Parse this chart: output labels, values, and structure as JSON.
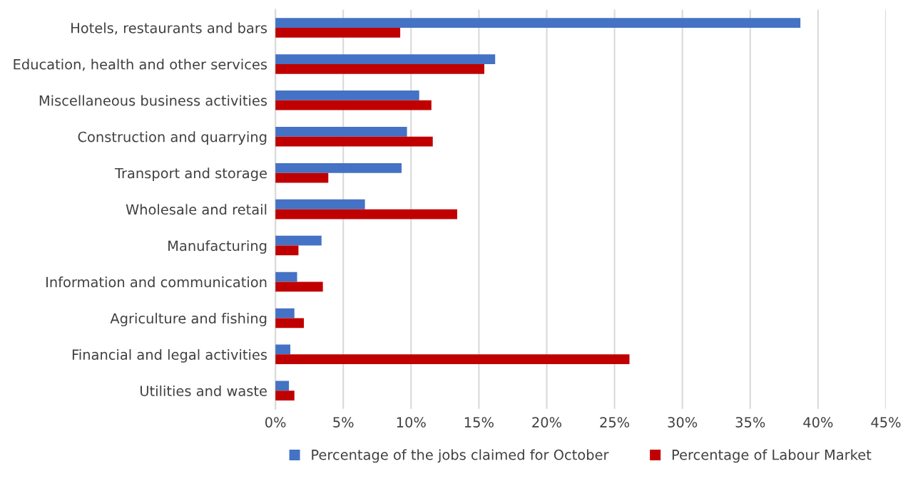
{
  "chart_data": {
    "type": "bar",
    "orientation": "horizontal",
    "categories": [
      "Hotels, restaurants and bars",
      "Education, health and other services",
      "Miscellaneous business activities",
      "Construction and quarrying",
      "Transport and storage",
      "Wholesale and retail",
      "Manufacturing",
      "Information and communication",
      "Agriculture and fishing",
      "Financial and legal activities",
      "Utilities and waste"
    ],
    "series": [
      {
        "name": "Percentage of the jobs claimed for October",
        "color": "#4472c4",
        "values": [
          38.7,
          16.2,
          10.6,
          9.7,
          9.3,
          6.6,
          3.4,
          1.6,
          1.4,
          1.1,
          1.0
        ]
      },
      {
        "name": "Percentage of Labour Market",
        "color": "#c00000",
        "values": [
          9.2,
          15.4,
          11.5,
          11.6,
          3.9,
          13.4,
          1.7,
          3.5,
          2.1,
          26.1,
          1.4
        ]
      }
    ],
    "xlim": [
      0,
      45
    ],
    "xticks": [
      {
        "value": 0,
        "label": "0%"
      },
      {
        "value": 5,
        "label": "5%"
      },
      {
        "value": 10,
        "label": "10%"
      },
      {
        "value": 15,
        "label": "15%"
      },
      {
        "value": 20,
        "label": "20%"
      },
      {
        "value": 25,
        "label": "25%"
      },
      {
        "value": 30,
        "label": "30%"
      },
      {
        "value": 35,
        "label": "35%"
      },
      {
        "value": 40,
        "label": "40%"
      },
      {
        "value": 45,
        "label": "45%"
      }
    ],
    "grid": "x",
    "legend": "bottom"
  }
}
